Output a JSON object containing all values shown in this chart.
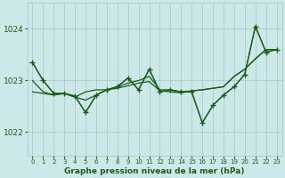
{
  "title": "Graphe pression niveau de la mer (hPa)",
  "bg_color": "#cce8e8",
  "grid_color": "#aacccc",
  "line_color": "#1a5c1a",
  "xlim": [
    -0.5,
    23.5
  ],
  "ylim": [
    1021.55,
    1024.5
  ],
  "yticks": [
    1022,
    1023,
    1024
  ],
  "xticks": [
    0,
    1,
    2,
    3,
    4,
    5,
    6,
    7,
    8,
    9,
    10,
    11,
    12,
    13,
    14,
    15,
    16,
    17,
    18,
    19,
    20,
    21,
    22,
    23
  ],
  "series": [
    {
      "y": [
        1023.35,
        1023.0,
        1022.75,
        1022.75,
        1022.7,
        1022.38,
        1022.72,
        1022.82,
        1022.88,
        1023.05,
        1022.82,
        1023.22,
        1022.78,
        1022.82,
        1022.78,
        1022.78,
        1022.18,
        1022.52,
        1022.72,
        1022.88,
        1023.12,
        1024.05,
        1023.55,
        1023.6
      ],
      "with_markers": true
    },
    {
      "y": [
        1023.0,
        1022.78,
        1022.72,
        1022.75,
        1022.68,
        1022.78,
        1022.82,
        1022.82,
        1022.85,
        1022.9,
        1022.95,
        1022.98,
        1022.8,
        1022.78,
        1022.76,
        1022.8,
        1022.82,
        1022.85,
        1022.88,
        1023.08,
        1023.22,
        1023.42,
        1023.6,
        1023.6
      ],
      "with_markers": false
    },
    {
      "y": [
        1022.78,
        1022.75,
        1022.72,
        1022.75,
        1022.68,
        1022.62,
        1022.72,
        1022.82,
        1022.88,
        1022.95,
        1023.0,
        1023.08,
        1022.82,
        1022.82,
        1022.78,
        1022.8,
        1022.82,
        1022.85,
        1022.88,
        1023.08,
        1023.22,
        1023.42,
        1023.6,
        1023.6
      ],
      "with_markers": false
    },
    {
      "y": [
        1023.35,
        1023.0,
        1022.75,
        1022.75,
        1022.7,
        1022.38,
        1022.72,
        1022.82,
        1022.88,
        1023.05,
        1022.82,
        1023.22,
        1022.78,
        1022.82,
        1022.78,
        1022.78,
        1022.18,
        1022.52,
        1022.72,
        1022.88,
        1023.12,
        1024.05,
        1023.55,
        1023.6
      ],
      "with_markers": false
    }
  ]
}
